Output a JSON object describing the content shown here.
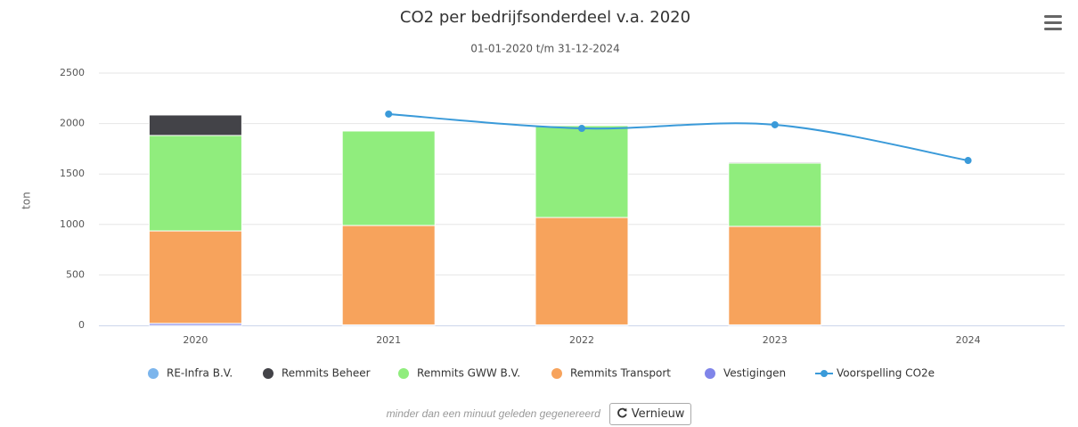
{
  "chart_data": {
    "type": "bar",
    "stacked": true,
    "title": "CO2 per bedrijfsonderdeel v.a. 2020",
    "subtitle": "01-01-2020 t/m 31-12-2024",
    "y_label": "ton",
    "categories": [
      "2020",
      "2021",
      "2022",
      "2023",
      "2024"
    ],
    "series": [
      {
        "name": "RE-Infra B.V.",
        "color": "#7cb5ec",
        "values": [
          0,
          0,
          0,
          0,
          0
        ]
      },
      {
        "name": "Remmits Beheer",
        "color": "#434348",
        "values": [
          203,
          0,
          0,
          10,
          0
        ]
      },
      {
        "name": "Remmits GWW B.V.",
        "color": "#90ed7d",
        "values": [
          946,
          936,
          910,
          627,
          0
        ]
      },
      {
        "name": "Remmits Transport",
        "color": "#f7a35c",
        "values": [
          916,
          985,
          1064,
          976,
          0
        ]
      },
      {
        "name": "Vestigingen",
        "color": "#8085e9",
        "values": [
          20,
          5,
          5,
          5,
          0
        ]
      },
      {
        "name": "Voorspelling CO2e",
        "color": "#3a9ad9",
        "type": "line",
        "values": [
          null,
          2094,
          1952,
          1988,
          1634
        ]
      }
    ],
    "ylim": [
      0,
      2500
    ],
    "yticks": [
      0,
      500,
      1000,
      1500,
      2000,
      2500
    ],
    "grid": true,
    "legend": "bottom"
  },
  "footer": {
    "note": "minder dan een minuut geleden gegenereerd",
    "button": "Vernieuw"
  }
}
